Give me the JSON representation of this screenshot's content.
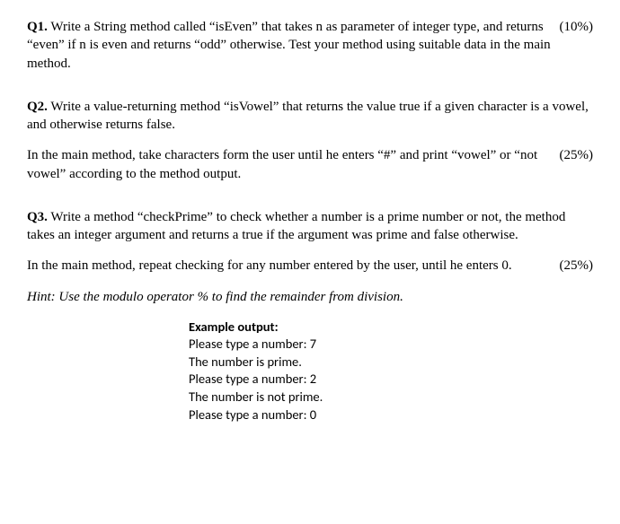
{
  "q1": {
    "label": "Q1.",
    "text_a": " Write a String method called “isEven” that takes n as parameter of integer type, and returns “even” if n is even and returns “odd” otherwise. Test your method using suitable data in the main method.",
    "percent": "(10%)"
  },
  "q2": {
    "label": "Q2.",
    "text_a": " Write a value-returning method “isVowel” that returns the value true if a given character is a vowel, and otherwise returns false.",
    "text_b": "In the main method, take characters form the user until he enters “#” and print “vowel” or “not vowel” according to the method output.",
    "percent": "(25%)"
  },
  "q3": {
    "label": "Q3.",
    "text_a": " Write a method “checkPrime” to check whether a number is a prime number or not, the method takes an integer argument and returns a true if the argument was prime and false otherwise.",
    "text_b": "In the main method, repeat checking for any number entered by the user, until he enters 0.",
    "percent": "(25%)",
    "hint": "Hint: Use the modulo operator % to find the remainder from division.",
    "example": {
      "title": "Example output:",
      "lines": [
        "Please type a number: 7",
        "The number is prime.",
        "Please type a number: 2",
        "The number is not prime.",
        "Please type a number: 0"
      ]
    }
  }
}
